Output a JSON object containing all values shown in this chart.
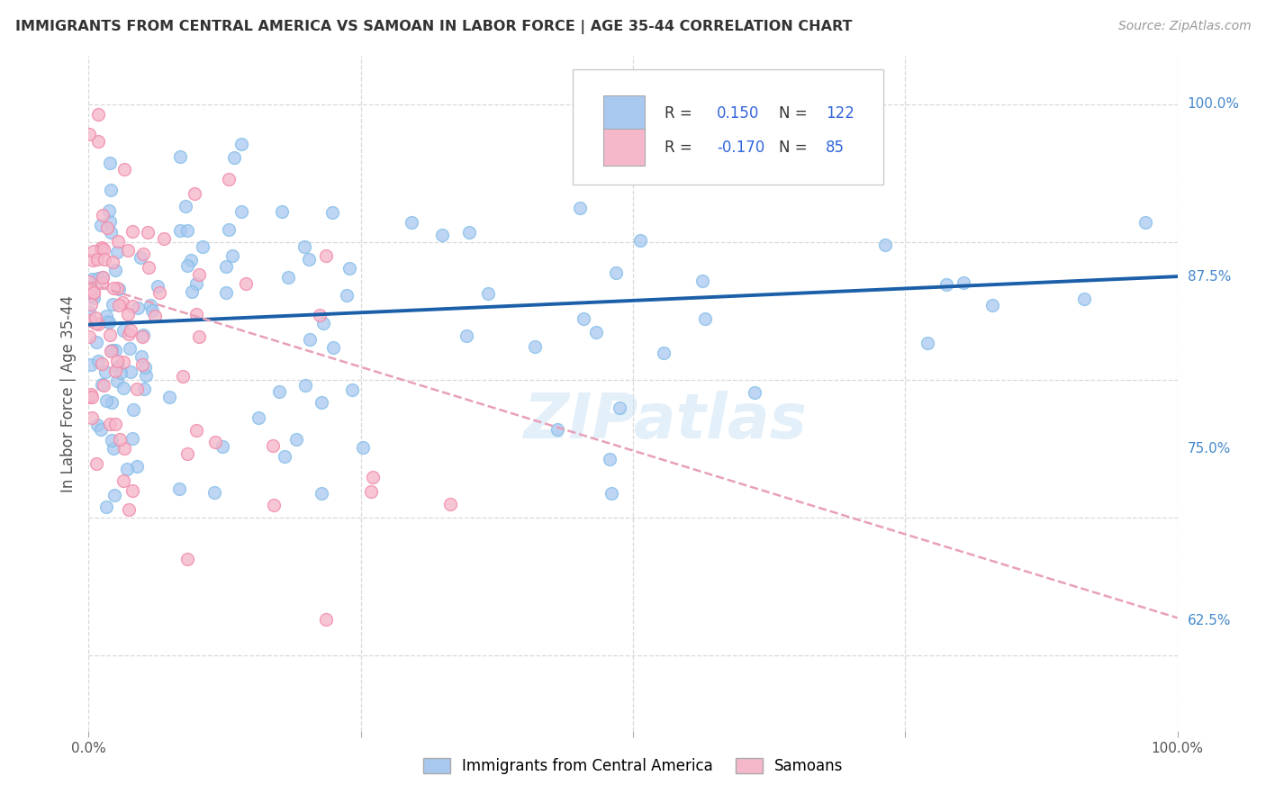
{
  "title": "IMMIGRANTS FROM CENTRAL AMERICA VS SAMOAN IN LABOR FORCE | AGE 35-44 CORRELATION CHART",
  "source": "Source: ZipAtlas.com",
  "ylabel": "In Labor Force | Age 35-44",
  "ylabel_ticks": [
    "62.5%",
    "75.0%",
    "87.5%",
    "100.0%"
  ],
  "ylabel_tick_values": [
    0.625,
    0.75,
    0.875,
    1.0
  ],
  "xlim": [
    0.0,
    1.0
  ],
  "ylim": [
    0.545,
    1.035
  ],
  "watermark": "ZIPatlas",
  "blue_color": "#a8c8f0",
  "blue_dot_color": "#7fbce8",
  "pink_color": "#f5b8cb",
  "pink_dot_color": "#f08aaa",
  "blue_line_color": "#1a5fa8",
  "pink_line_color": "#e8a0b8",
  "background_color": "#ffffff",
  "grid_color": "#d8d8d8",
  "blue_trend_y0": 0.84,
  "blue_trend_y1": 0.875,
  "pink_trend_y0": 0.87,
  "pink_trend_y1": 0.627,
  "legend_R_blue": "0.150",
  "legend_N_blue": "122",
  "legend_R_pink": "-0.170",
  "legend_N_pink": "85"
}
